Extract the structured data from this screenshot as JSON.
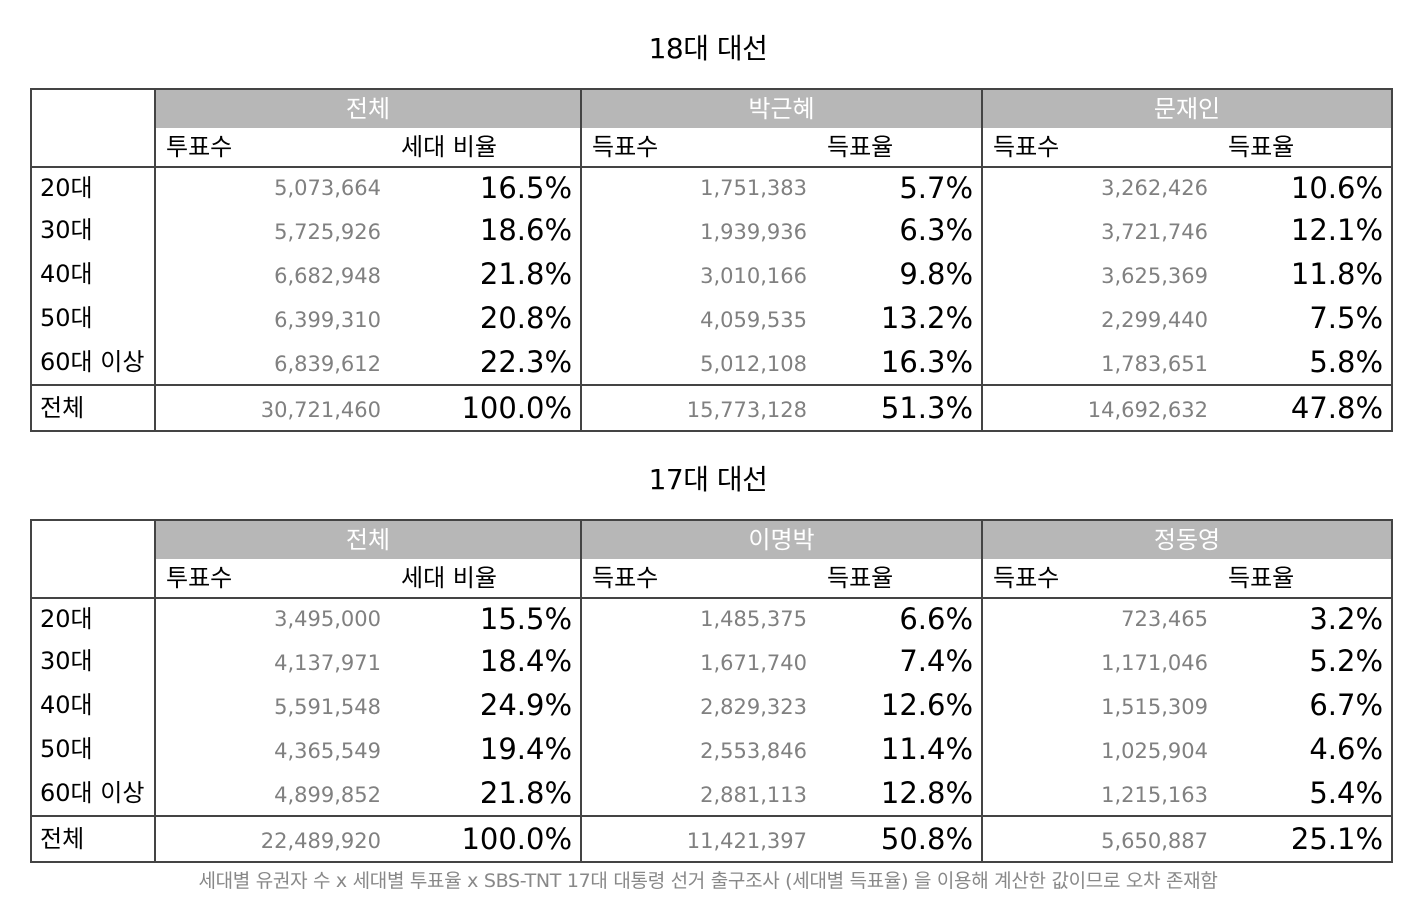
{
  "tables": [
    {
      "title": "18대 대선",
      "groups": [
        "전체",
        "박근혜",
        "문재인"
      ],
      "subheaders": [
        "투표수",
        "세대 비율",
        "득표수",
        "득표율",
        "득표수",
        "득표율"
      ],
      "rows": [
        {
          "label": "20대",
          "cells": [
            "5,073,664",
            "16.5%",
            "1,751,383",
            "5.7%",
            "3,262,426",
            "10.6%"
          ]
        },
        {
          "label": "30대",
          "cells": [
            "5,725,926",
            "18.6%",
            "1,939,936",
            "6.3%",
            "3,721,746",
            "12.1%"
          ]
        },
        {
          "label": "40대",
          "cells": [
            "6,682,948",
            "21.8%",
            "3,010,166",
            "9.8%",
            "3,625,369",
            "11.8%"
          ]
        },
        {
          "label": "50대",
          "cells": [
            "6,399,310",
            "20.8%",
            "4,059,535",
            "13.2%",
            "2,299,440",
            "7.5%"
          ]
        },
        {
          "label": "60대 이상",
          "cells": [
            "6,839,612",
            "22.3%",
            "5,012,108",
            "16.3%",
            "1,783,651",
            "5.8%"
          ]
        }
      ],
      "total": {
        "label": "전체",
        "cells": [
          "30,721,460",
          "100.0%",
          "15,773,128",
          "51.3%",
          "14,692,632",
          "47.8%"
        ]
      }
    },
    {
      "title": "17대 대선",
      "groups": [
        "전체",
        "이명박",
        "정동영"
      ],
      "subheaders": [
        "투표수",
        "세대 비율",
        "득표수",
        "득표율",
        "득표수",
        "득표율"
      ],
      "rows": [
        {
          "label": "20대",
          "cells": [
            "3,495,000",
            "15.5%",
            "1,485,375",
            "6.6%",
            "723,465",
            "3.2%"
          ]
        },
        {
          "label": "30대",
          "cells": [
            "4,137,971",
            "18.4%",
            "1,671,740",
            "7.4%",
            "1,171,046",
            "5.2%"
          ]
        },
        {
          "label": "40대",
          "cells": [
            "5,591,548",
            "24.9%",
            "2,829,323",
            "12.6%",
            "1,515,309",
            "6.7%"
          ]
        },
        {
          "label": "50대",
          "cells": [
            "4,365,549",
            "19.4%",
            "2,553,846",
            "11.4%",
            "1,025,904",
            "4.6%"
          ]
        },
        {
          "label": "60대 이상",
          "cells": [
            "4,899,852",
            "21.8%",
            "2,881,113",
            "12.8%",
            "1,215,163",
            "5.4%"
          ]
        }
      ],
      "total": {
        "label": "전체",
        "cells": [
          "22,489,920",
          "100.0%",
          "11,421,397",
          "50.8%",
          "5,650,887",
          "25.1%"
        ]
      }
    }
  ],
  "footnote": "세대별 유권자 수 x 세대별 투표율 x SBS-TNT 17대 대통령 선거 출구조사 (세대별 득표율) 을 이용해 계산한 값이므로 오차 존재함"
}
